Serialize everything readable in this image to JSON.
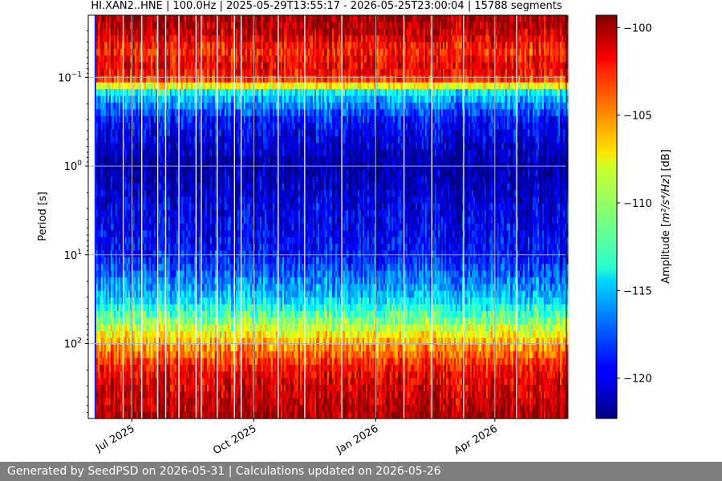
{
  "chart_data": {
    "type": "heatmap",
    "title": "HI.XAN2..HNE | 100.0Hz | 2025-05-29T13:55:17 - 2026-05-25T23:00:04 | 15788 segments",
    "ylabel": "Period [s]",
    "y_scale": "log",
    "ylim": [
      0.02,
      700
    ],
    "y_inverted": true,
    "y_ticks": [
      {
        "value": 0.1,
        "base": "10",
        "exp": "−1"
      },
      {
        "value": 1,
        "base": "10",
        "exp": "0"
      },
      {
        "value": 10,
        "base": "10",
        "exp": "1"
      },
      {
        "value": 100,
        "base": "10",
        "exp": "2"
      }
    ],
    "x_start": "2025-05-29",
    "x_end": "2026-05-25",
    "data_start": "2025-06-04",
    "x_ticks": [
      {
        "date": "2025-07-01",
        "label": "Jul 2025"
      },
      {
        "date": "2025-10-01",
        "label": "Oct 2025"
      },
      {
        "date": "2026-01-01",
        "label": "Jan 2026"
      },
      {
        "date": "2026-04-01",
        "label": "Apr 2026"
      }
    ],
    "grid": true,
    "colormap": "jet",
    "colorbar": {
      "label_prefix": "Amplitude [",
      "label_math": "m²/s⁴/Hz",
      "label_suffix": "] [dB]",
      "range": [
        -122.3,
        -99.3
      ],
      "ticks": [
        {
          "value": -100,
          "label": "−100"
        },
        {
          "value": -105,
          "label": "−105"
        },
        {
          "value": -110,
          "label": "−110"
        },
        {
          "value": -115,
          "label": "−115"
        },
        {
          "value": -120,
          "label": "−120"
        }
      ]
    },
    "period_profile_db": [
      {
        "period": 0.02,
        "db": -100
      },
      {
        "period": 0.03,
        "db": -100.5
      },
      {
        "period": 0.05,
        "db": -103
      },
      {
        "period": 0.08,
        "db": -101.5
      },
      {
        "period": 0.11,
        "db": -104
      },
      {
        "period": 0.15,
        "db": -114
      },
      {
        "period": 0.3,
        "db": -119
      },
      {
        "period": 0.6,
        "db": -120.5
      },
      {
        "period": 1,
        "db": -121.5
      },
      {
        "period": 3,
        "db": -120
      },
      {
        "period": 10,
        "db": -119
      },
      {
        "period": 30,
        "db": -115
      },
      {
        "period": 60,
        "db": -110
      },
      {
        "period": 100,
        "db": -106
      },
      {
        "period": 200,
        "db": -102
      },
      {
        "period": 700,
        "db": -100
      }
    ]
  },
  "footer": "Generated by SeedPSD on 2026-05-31 | Calculations updated on 2026-05-26"
}
